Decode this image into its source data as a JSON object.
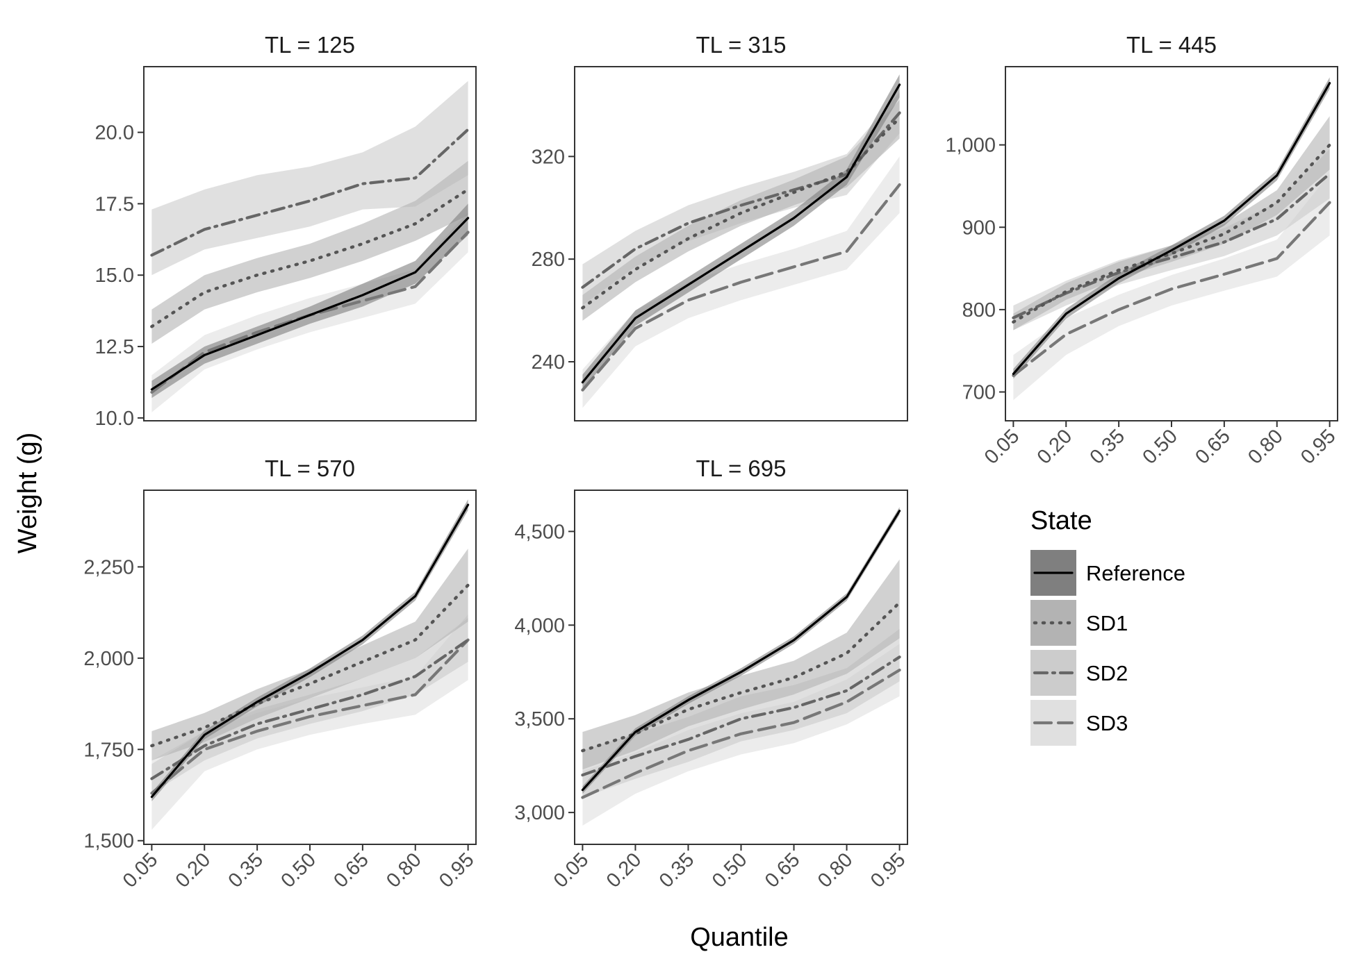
{
  "chart_data": {
    "type": "line",
    "xlabel": "Quantile",
    "ylabel": "Weight (g)",
    "x_tick_labels": [
      "0.05",
      "0.20",
      "0.35",
      "0.50",
      "0.65",
      "0.80",
      "0.95"
    ],
    "legend": {
      "title": "State",
      "entries": [
        {
          "name": "Reference",
          "line": "solid",
          "line_color": "#000000",
          "band_color": "#7f7f7f"
        },
        {
          "name": "SD1",
          "line": "dotted",
          "line_color": "#555555",
          "band_color": "#b3b3b3"
        },
        {
          "name": "SD2",
          "line": "dotdash",
          "line_color": "#666666",
          "band_color": "#cccccc"
        },
        {
          "name": "SD3",
          "line": "longdash",
          "line_color": "#777777",
          "band_color": "#e0e0e0"
        }
      ]
    },
    "panels": [
      {
        "title": "TL = 125",
        "ylim": [
          9.9,
          22.3
        ],
        "y_ticks": [
          10,
          12.5,
          15,
          17.5,
          20
        ],
        "y_tick_labels": [
          "10.0",
          "12.5",
          "15.0",
          "17.5",
          "20.0"
        ],
        "show_x_ticks": false,
        "series": [
          {
            "name": "Reference",
            "x": [
              0.05,
              0.2,
              0.35,
              0.5,
              0.65,
              0.8,
              0.95
            ],
            "y": [
              11.0,
              12.2,
              12.9,
              13.6,
              14.3,
              15.1,
              17.0
            ],
            "band_lo": [
              10.7,
              11.9,
              12.6,
              13.3,
              13.9,
              14.7,
              16.4
            ],
            "band_hi": [
              11.3,
              12.5,
              13.2,
              13.9,
              14.7,
              15.5,
              17.5
            ]
          },
          {
            "name": "SD1",
            "x": [
              0.05,
              0.2,
              0.35,
              0.5,
              0.65,
              0.8,
              0.95
            ],
            "y": [
              13.2,
              14.4,
              15.0,
              15.5,
              16.1,
              16.8,
              18.0
            ],
            "band_lo": [
              12.6,
              13.8,
              14.4,
              14.9,
              15.5,
              16.2,
              17.1
            ],
            "band_hi": [
              13.8,
              15.0,
              15.6,
              16.1,
              16.8,
              17.6,
              19.0
            ]
          },
          {
            "name": "SD2",
            "x": [
              0.05,
              0.2,
              0.35,
              0.5,
              0.65,
              0.8,
              0.95
            ],
            "y": [
              15.7,
              16.6,
              17.1,
              17.6,
              18.2,
              18.4,
              20.1
            ],
            "band_lo": [
              15.0,
              15.9,
              16.3,
              16.7,
              17.3,
              17.4,
              18.5
            ],
            "band_hi": [
              17.3,
              18.0,
              18.5,
              18.8,
              19.3,
              20.2,
              21.8
            ]
          },
          {
            "name": "SD3",
            "x": [
              0.05,
              0.2,
              0.35,
              0.5,
              0.65,
              0.8,
              0.95
            ],
            "y": [
              10.9,
              12.3,
              13.0,
              13.6,
              14.1,
              14.6,
              16.5
            ],
            "band_lo": [
              10.2,
              11.7,
              12.4,
              13.0,
              13.5,
              14.0,
              15.8
            ],
            "band_hi": [
              11.5,
              12.9,
              13.6,
              14.2,
              14.7,
              15.2,
              17.2
            ]
          }
        ]
      },
      {
        "title": "TL = 315",
        "ylim": [
          217,
          355
        ],
        "y_ticks": [
          240,
          280,
          320
        ],
        "y_tick_labels": [
          "240",
          "280",
          "320"
        ],
        "show_x_ticks": false,
        "series": [
          {
            "name": "Reference",
            "x": [
              0.05,
              0.2,
              0.35,
              0.5,
              0.65,
              0.8,
              0.95
            ],
            "y": [
              232,
              257,
              270,
              283,
              296,
              312,
              348
            ],
            "band_lo": [
              229,
              254,
              267,
              280,
              293,
              309,
              343
            ],
            "band_hi": [
              235,
              260,
              273,
              286,
              299,
              315,
              352
            ]
          },
          {
            "name": "SD1",
            "x": [
              0.05,
              0.2,
              0.35,
              0.5,
              0.65,
              0.8,
              0.95
            ],
            "y": [
              261,
              276,
              288,
              298,
              306,
              314,
              335
            ],
            "band_lo": [
              256,
              271,
              283,
              293,
              301,
              308,
              327
            ],
            "band_hi": [
              266,
              281,
              293,
              303,
              311,
              320,
              342
            ]
          },
          {
            "name": "SD2",
            "x": [
              0.05,
              0.2,
              0.35,
              0.5,
              0.65,
              0.8,
              0.95
            ],
            "y": [
              269,
              284,
              294,
              301,
              307,
              313,
              337
            ],
            "band_lo": [
              262,
              277,
              287,
              294,
              300,
              305,
              329
            ],
            "band_hi": [
              278,
              291,
              301,
              308,
              314,
              321,
              345
            ]
          },
          {
            "name": "SD3",
            "x": [
              0.05,
              0.2,
              0.35,
              0.5,
              0.65,
              0.8,
              0.95
            ],
            "y": [
              229,
              253,
              264,
              271,
              277,
              283,
              309
            ],
            "band_lo": [
              222,
              246,
              257,
              264,
              270,
              276,
              298
            ],
            "band_hi": [
              237,
              260,
              271,
              278,
              284,
              291,
              320
            ]
          }
        ]
      },
      {
        "title": "TL = 445",
        "ylim": [
          665,
          1095
        ],
        "y_ticks": [
          700,
          800,
          900,
          1000
        ],
        "y_tick_labels": [
          "700",
          "800",
          "900",
          "1,000"
        ],
        "show_x_ticks": true,
        "series": [
          {
            "name": "Reference",
            "x": [
              0.05,
              0.2,
              0.35,
              0.5,
              0.65,
              0.8,
              0.95
            ],
            "y": [
              722,
              795,
              838,
              872,
              908,
              963,
              1075
            ],
            "band_lo": [
              716,
              789,
              832,
              866,
              902,
              957,
              1068
            ],
            "band_hi": [
              728,
              801,
              844,
              878,
              914,
              969,
              1082
            ]
          },
          {
            "name": "SD1",
            "x": [
              0.05,
              0.2,
              0.35,
              0.5,
              0.65,
              0.8,
              0.95
            ],
            "y": [
              785,
              822,
              848,
              868,
              892,
              930,
              1000
            ],
            "band_lo": [
              775,
              812,
              838,
              858,
              880,
              915,
              970
            ],
            "band_hi": [
              795,
              832,
              858,
              878,
              904,
              945,
              1035
            ]
          },
          {
            "name": "SD2",
            "x": [
              0.05,
              0.2,
              0.35,
              0.5,
              0.65,
              0.8,
              0.95
            ],
            "y": [
              790,
              820,
              845,
              863,
              882,
              910,
              965
            ],
            "band_lo": [
              775,
              805,
              830,
              848,
              865,
              890,
              935
            ],
            "band_hi": [
              805,
              835,
              860,
              878,
              899,
              930,
              995
            ]
          },
          {
            "name": "SD3",
            "x": [
              0.05,
              0.2,
              0.35,
              0.5,
              0.65,
              0.8,
              0.95
            ],
            "y": [
              720,
              770,
              800,
              825,
              843,
              862,
              930
            ],
            "band_lo": [
              690,
              745,
              780,
              805,
              823,
              840,
              890
            ],
            "band_hi": [
              745,
              790,
              818,
              842,
              862,
              885,
              965
            ]
          }
        ]
      },
      {
        "title": "TL = 570",
        "ylim": [
          1490,
          2460
        ],
        "y_ticks": [
          1500,
          1750,
          2000,
          2250
        ],
        "y_tick_labels": [
          "1,500",
          "1,750",
          "2,000",
          "2,250"
        ],
        "show_x_ticks": true,
        "series": [
          {
            "name": "Reference",
            "x": [
              0.05,
              0.2,
              0.35,
              0.5,
              0.65,
              0.8,
              0.95
            ],
            "y": [
              1620,
              1790,
              1880,
              1960,
              2050,
              2170,
              2420
            ],
            "band_lo": [
              1608,
              1778,
              1868,
              1948,
              2038,
              2158,
              2405
            ],
            "band_hi": [
              1632,
              1802,
              1892,
              1972,
              2062,
              2182,
              2435
            ]
          },
          {
            "name": "SD1",
            "x": [
              0.05,
              0.2,
              0.35,
              0.5,
              0.65,
              0.8,
              0.95
            ],
            "y": [
              1760,
              1810,
              1875,
              1930,
              1990,
              2050,
              2200
            ],
            "band_lo": [
              1720,
              1770,
              1835,
              1890,
              1945,
              2000,
              2100
            ],
            "band_hi": [
              1800,
              1850,
              1915,
              1970,
              2035,
              2100,
              2300
            ]
          },
          {
            "name": "SD2",
            "x": [
              0.05,
              0.2,
              0.35,
              0.5,
              0.65,
              0.8,
              0.95
            ],
            "y": [
              1670,
              1760,
              1820,
              1860,
              1900,
              1950,
              2050
            ],
            "band_lo": [
              1630,
              1720,
              1780,
              1820,
              1855,
              1900,
              1990
            ],
            "band_hi": [
              1710,
              1800,
              1860,
              1900,
              1945,
              2000,
              2110
            ]
          },
          {
            "name": "SD3",
            "x": [
              0.05,
              0.2,
              0.35,
              0.5,
              0.65,
              0.8,
              0.95
            ],
            "y": [
              1630,
              1750,
              1800,
              1840,
              1870,
              1900,
              2050
            ],
            "band_lo": [
              1530,
              1690,
              1750,
              1790,
              1820,
              1845,
              1940
            ],
            "band_hi": [
              1720,
              1800,
              1850,
              1890,
              1920,
              1950,
              2120
            ]
          }
        ]
      },
      {
        "title": "TL = 695",
        "ylim": [
          2830,
          4720
        ],
        "y_ticks": [
          3000,
          3500,
          4000,
          4500
        ],
        "y_tick_labels": [
          "3,000",
          "3,500",
          "4,000",
          "4,500"
        ],
        "show_x_ticks": true,
        "series": [
          {
            "name": "Reference",
            "x": [
              0.05,
              0.2,
              0.35,
              0.5,
              0.65,
              0.8,
              0.95
            ],
            "y": [
              3120,
              3430,
              3600,
              3750,
              3920,
              4150,
              4610
            ],
            "band_lo": [
              3100,
              3410,
              3580,
              3730,
              3900,
              4130,
              4590
            ],
            "band_hi": [
              3140,
              3450,
              3620,
              3770,
              3940,
              4170,
              4630
            ]
          },
          {
            "name": "SD1",
            "x": [
              0.05,
              0.2,
              0.35,
              0.5,
              0.65,
              0.8,
              0.95
            ],
            "y": [
              3330,
              3420,
              3550,
              3640,
              3720,
              3850,
              4120
            ],
            "band_lo": [
              3230,
              3330,
              3460,
              3550,
              3630,
              3740,
              3930
            ],
            "band_hi": [
              3430,
              3520,
              3640,
              3730,
              3810,
              3960,
              4350
            ]
          },
          {
            "name": "SD2",
            "x": [
              0.05,
              0.2,
              0.35,
              0.5,
              0.65,
              0.8,
              0.95
            ],
            "y": [
              3200,
              3300,
              3390,
              3500,
              3560,
              3650,
              3830
            ],
            "band_lo": [
              3080,
              3180,
              3270,
              3380,
              3440,
              3530,
              3700
            ],
            "band_hi": [
              3330,
              3420,
              3510,
              3620,
              3680,
              3770,
              3980
            ]
          },
          {
            "name": "SD3",
            "x": [
              0.05,
              0.2,
              0.35,
              0.5,
              0.65,
              0.8,
              0.95
            ],
            "y": [
              3080,
              3210,
              3330,
              3420,
              3480,
              3590,
              3760
            ],
            "band_lo": [
              2930,
              3100,
              3220,
              3310,
              3370,
              3470,
              3620
            ],
            "band_hi": [
              3220,
              3320,
              3440,
              3530,
              3590,
              3710,
              3900
            ]
          }
        ]
      }
    ]
  }
}
